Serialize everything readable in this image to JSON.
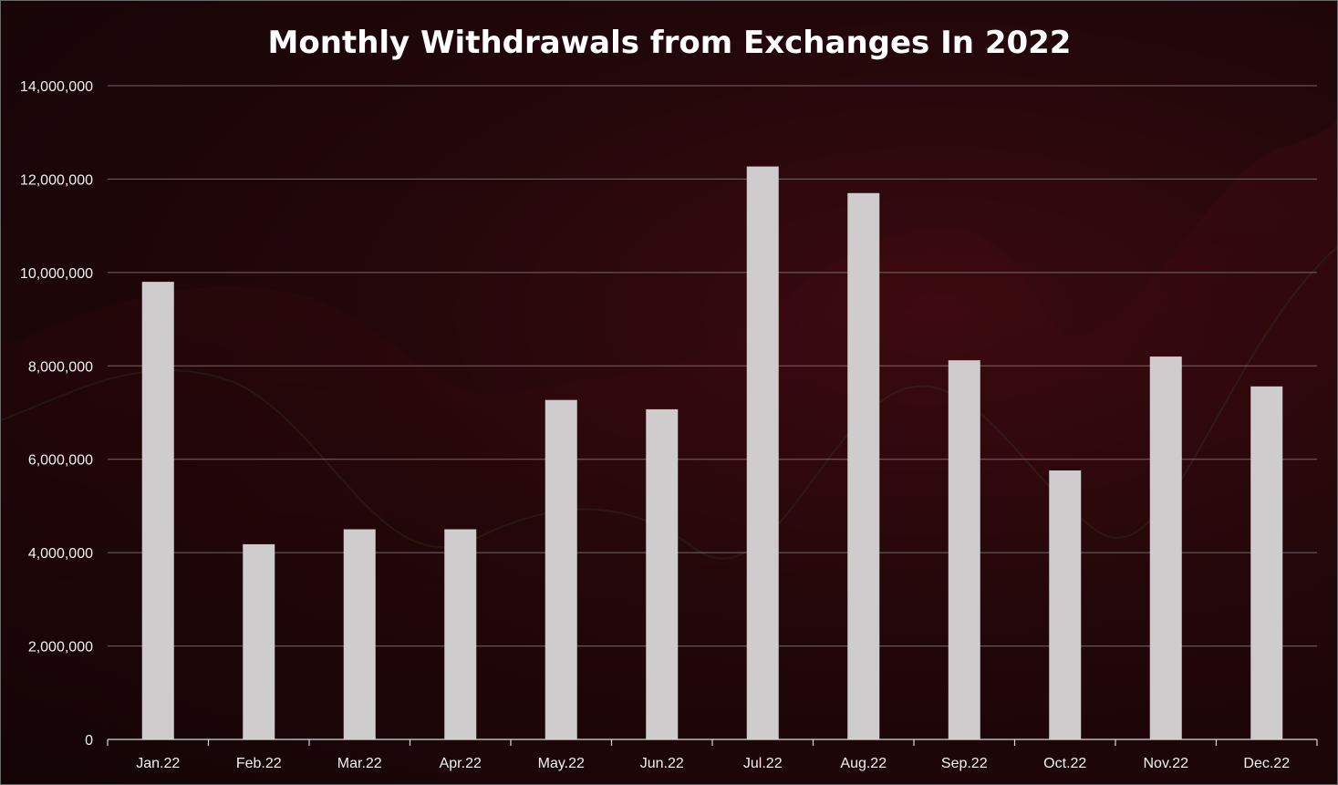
{
  "chart_data": {
    "type": "bar",
    "title": "Monthly Withdrawals from Exchanges In 2022",
    "xlabel": "",
    "ylabel": "",
    "categories": [
      "Jan.22",
      "Feb.22",
      "Mar.22",
      "Apr.22",
      "May.22",
      "Jun.22",
      "Jul.22",
      "Aug.22",
      "Sep.22",
      "Oct.22",
      "Nov.22",
      "Dec.22"
    ],
    "values": [
      9800000,
      4180000,
      4500000,
      4500000,
      7270000,
      7070000,
      12270000,
      11700000,
      8120000,
      5760000,
      8200000,
      7560000
    ],
    "ylim": [
      0,
      14000000
    ],
    "yticks": [
      0,
      2000000,
      4000000,
      6000000,
      8000000,
      10000000,
      12000000,
      14000000
    ],
    "ytick_labels": [
      "0",
      "2,000,000",
      "4,000,000",
      "6,000,000",
      "8,000,000",
      "10,000,000",
      "12,000,000",
      "14,000,000"
    ],
    "grid": true,
    "legend": "none",
    "colors": {
      "bar": "#cfcccd",
      "grid": "#8a7d7f",
      "text": "#f2f2f2"
    }
  }
}
